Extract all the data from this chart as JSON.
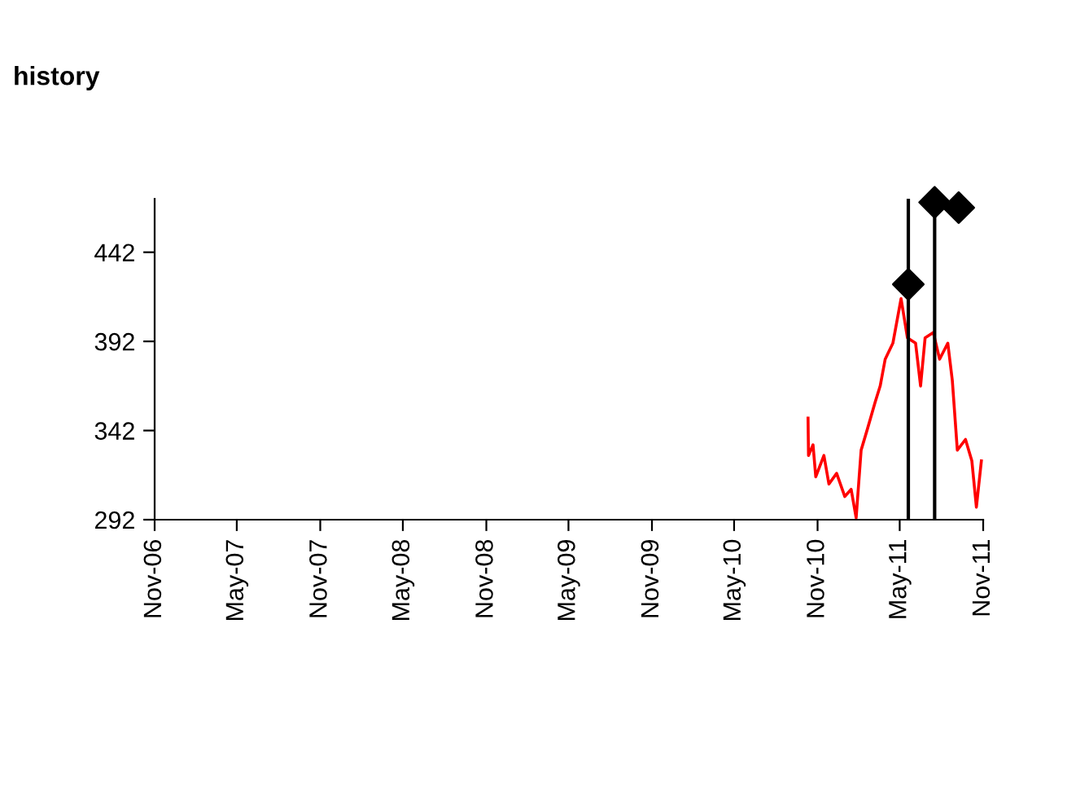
{
  "chart_data": {
    "type": "line",
    "title": "history",
    "series": [
      {
        "color": "#ff0000",
        "x": [
          "2010-10-11",
          "2010-10-12",
          "2010-10-22",
          "2010-10-28",
          "2010-11-15",
          "2010-11-26",
          "2010-12-13",
          "2010-12-31",
          "2011-01-14",
          "2011-01-25",
          "2011-02-05",
          "2011-02-19",
          "2011-03-08",
          "2011-03-19",
          "2011-03-30",
          "2011-04-16",
          "2011-05-04",
          "2011-05-18",
          "2011-06-05",
          "2011-06-16",
          "2011-06-26",
          "2011-07-14",
          "2011-07-28",
          "2011-08-15",
          "2011-08-25",
          "2011-09-05",
          "2011-09-23",
          "2011-10-07",
          "2011-10-17",
          "2011-10-28"
        ],
        "values": [
          349,
          328,
          334,
          316,
          328,
          312,
          318,
          305,
          309,
          293,
          331,
          343,
          358,
          367,
          382,
          391,
          416,
          394,
          391,
          367,
          394,
          397,
          382,
          391,
          370,
          331,
          337,
          325,
          299,
          325
        ],
        "marker": "none",
        "line_style": "solid"
      },
      {
        "type": "scatter",
        "color": "#000000",
        "marker": "diamond",
        "x": [
          "2011-05-20",
          "2011-07-17",
          "2011-09-08"
        ],
        "values": [
          424,
          470,
          467
        ]
      }
    ],
    "ref_lines": [
      {
        "axis": "x",
        "value": "2011-05-20",
        "color": "#000000"
      },
      {
        "axis": "x",
        "value": "2011-07-17",
        "color": "#000000"
      }
    ],
    "xlim": [
      "2006-11-01",
      "2011-11-01"
    ],
    "xticks": [
      {
        "value": "2006-11-01",
        "label": "Nov-06"
      },
      {
        "value": "2007-05-01",
        "label": "May-07"
      },
      {
        "value": "2007-11-01",
        "label": "Nov-07"
      },
      {
        "value": "2008-05-01",
        "label": "May-08"
      },
      {
        "value": "2008-11-01",
        "label": "Nov-08"
      },
      {
        "value": "2009-05-01",
        "label": "May-09"
      },
      {
        "value": "2009-11-01",
        "label": "Nov-09"
      },
      {
        "value": "2010-05-01",
        "label": "May-10"
      },
      {
        "value": "2010-11-01",
        "label": "Nov-10"
      },
      {
        "value": "2011-05-01",
        "label": "May-11"
      },
      {
        "value": "2011-11-01",
        "label": "Nov-11"
      }
    ],
    "ylim": [
      292,
      472
    ],
    "yticks": [
      292,
      342,
      392,
      442
    ],
    "grid": false
  }
}
